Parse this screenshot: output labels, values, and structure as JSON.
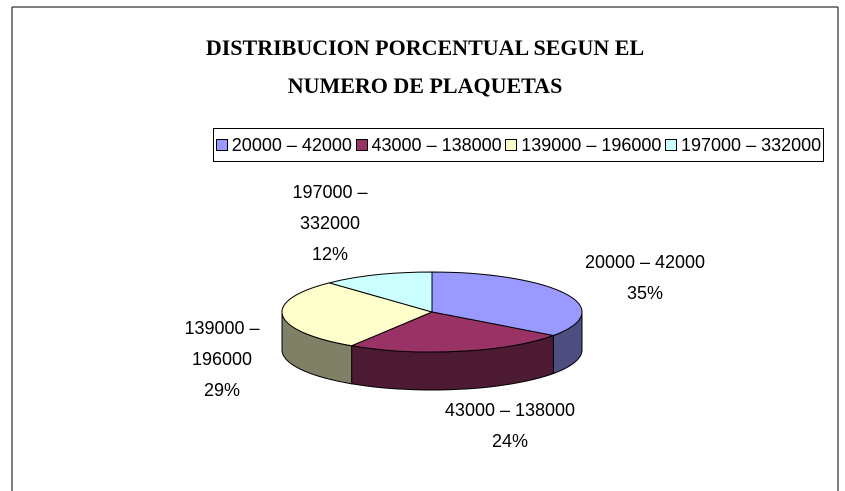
{
  "chart_data": {
    "type": "pie",
    "title": [
      "DISTRIBUCION PORCENTUAL SEGUN EL",
      "NUMERO DE PLAQUETAS"
    ],
    "categories": [
      "20000 – 42000",
      "43000 – 138000",
      "139000 – 196000",
      "197000 – 332000"
    ],
    "values": [
      35,
      24,
      29,
      12
    ],
    "value_labels": [
      "35%",
      "24%",
      "29%",
      "12%"
    ],
    "colors": [
      "#9999ff",
      "#993366",
      "#ffffcc",
      "#ccffff"
    ],
    "legend": "top"
  }
}
